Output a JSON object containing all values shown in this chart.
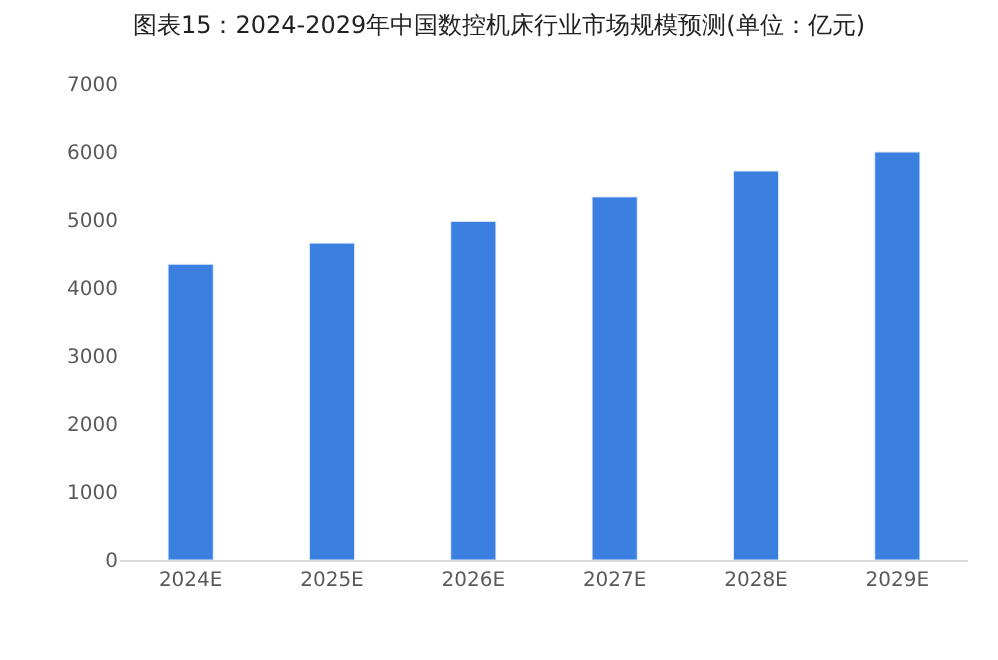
{
  "chart_data": {
    "type": "bar",
    "title": "图表15：2024-2029年中国数控机床行业市场规模预测(单位：亿元)",
    "categories": [
      "2024E",
      "2025E",
      "2026E",
      "2027E",
      "2028E",
      "2029E"
    ],
    "values": [
      4350,
      4660,
      4980,
      5340,
      5720,
      6000
    ],
    "color": "#3b80e0",
    "ylim": [
      0,
      7000
    ],
    "yticks": [
      0,
      1000,
      2000,
      3000,
      4000,
      5000,
      6000,
      7000
    ],
    "grid": false
  }
}
